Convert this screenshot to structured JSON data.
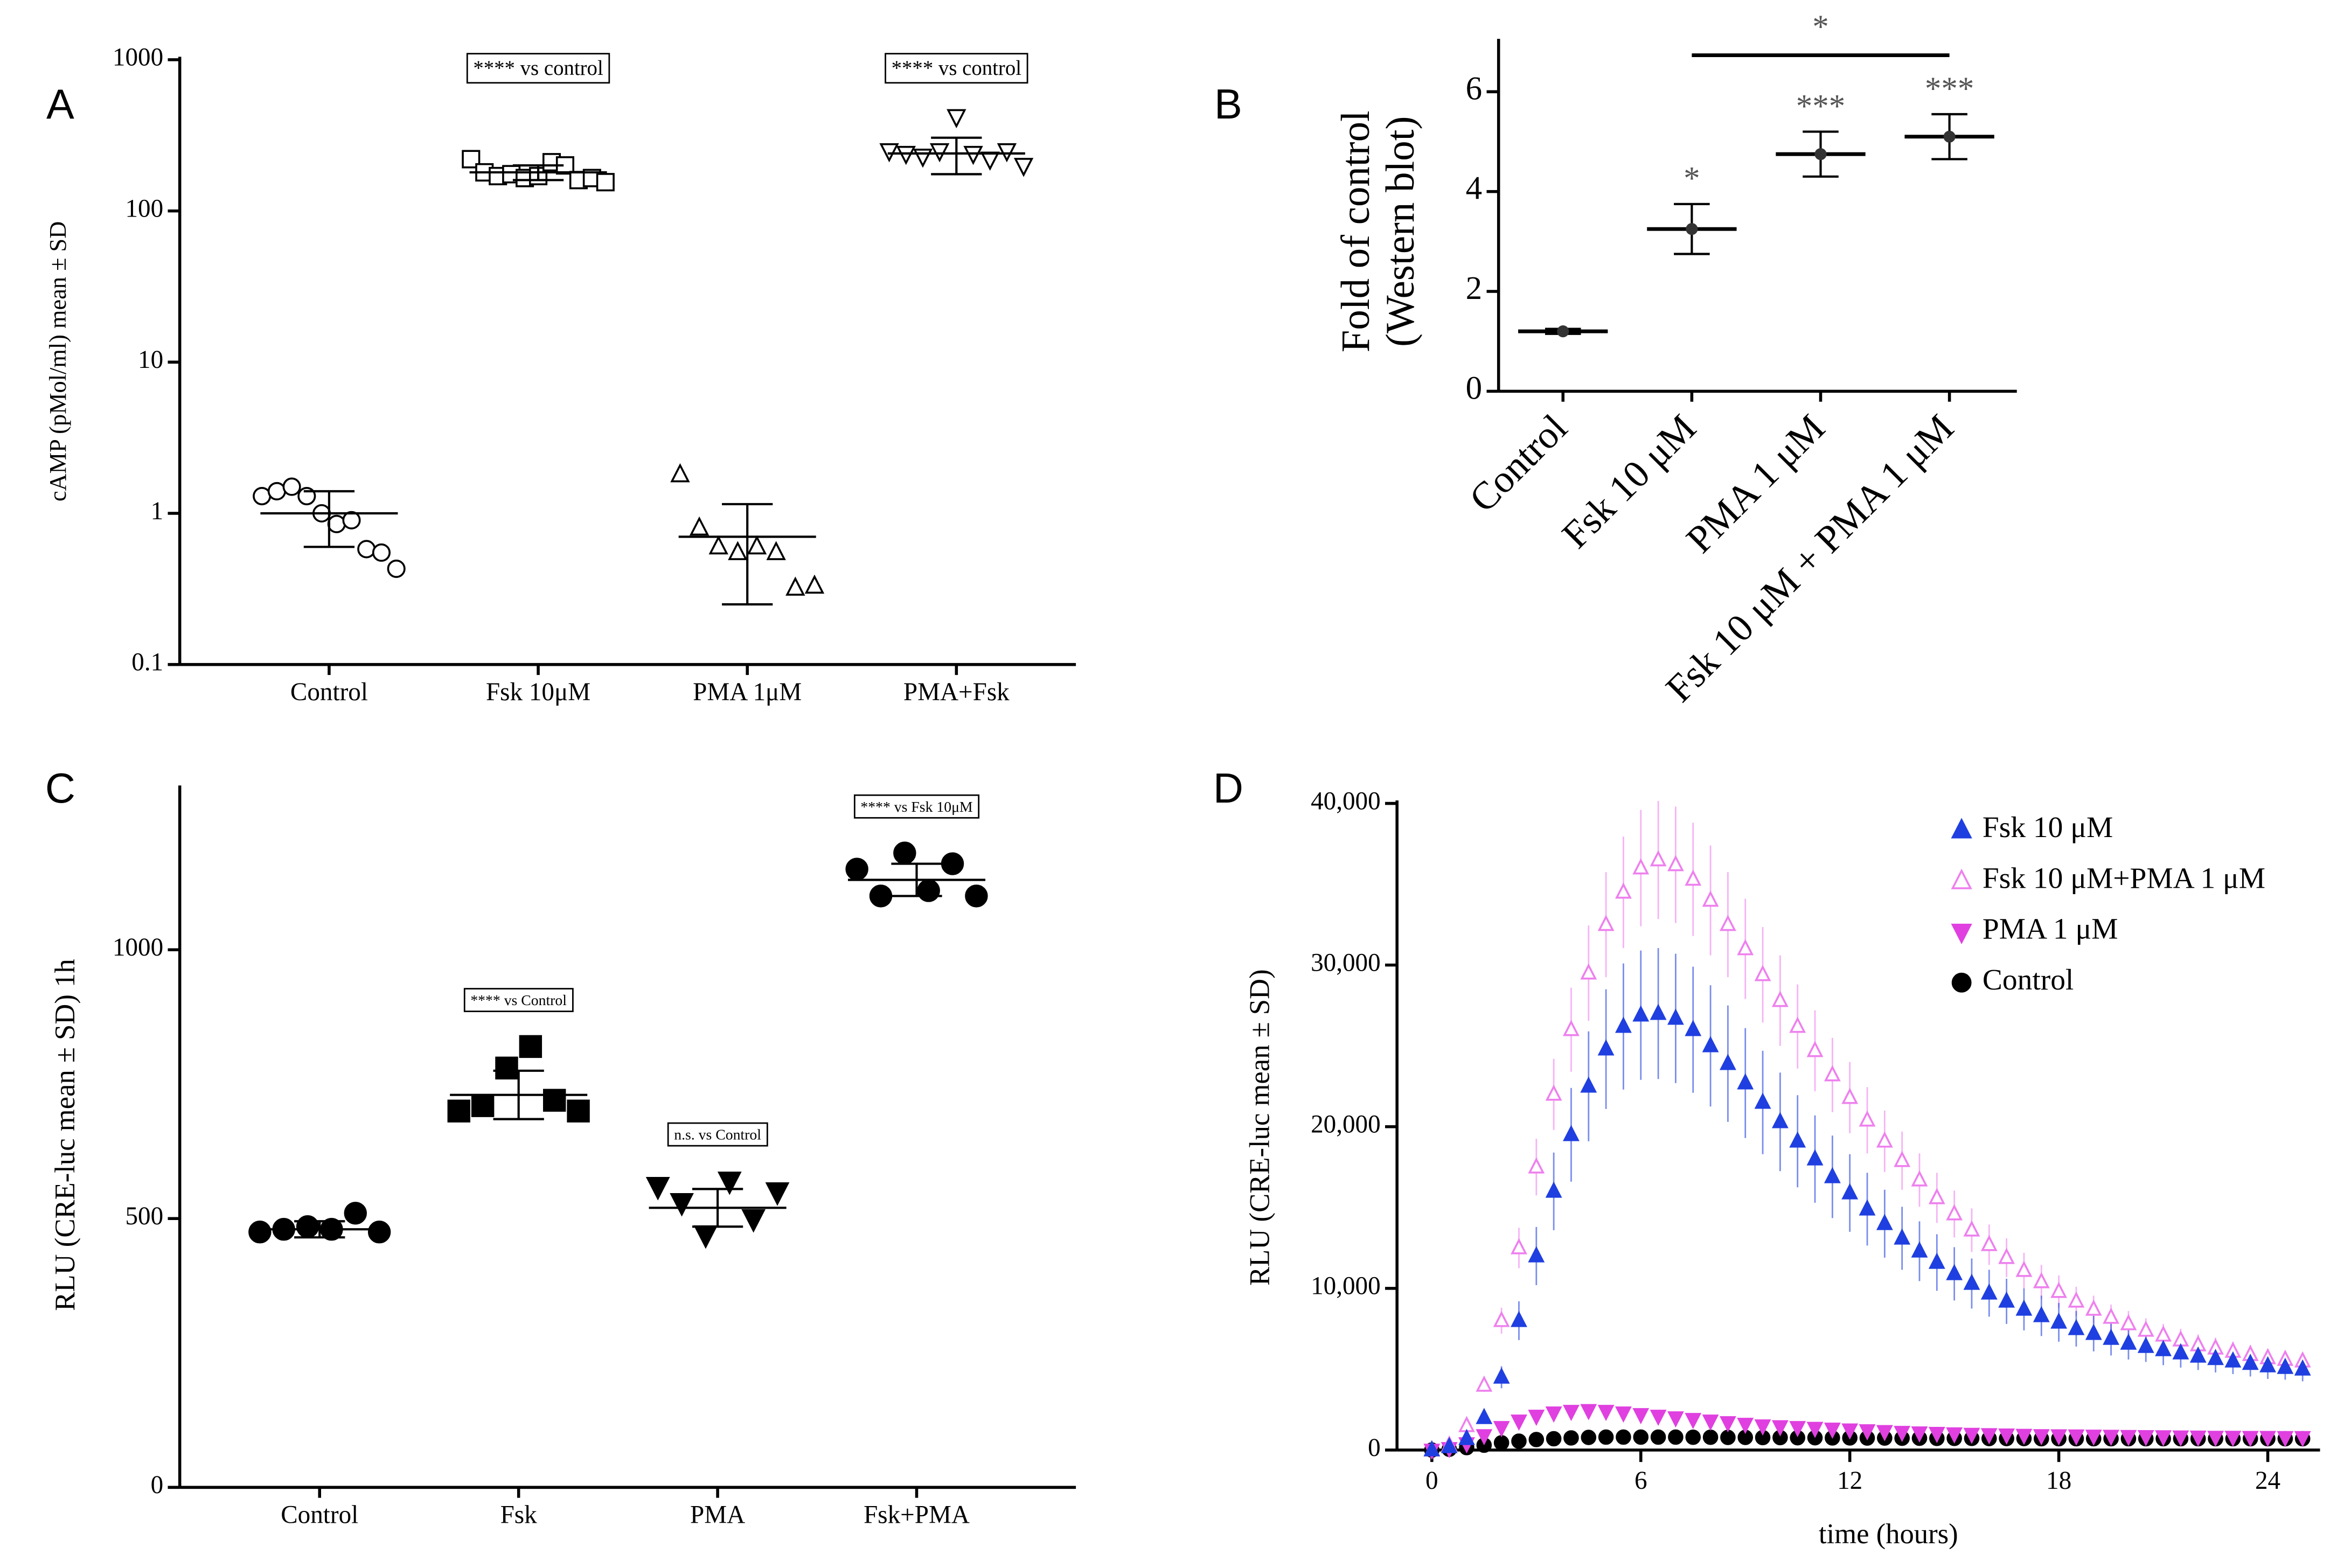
{
  "chart_data": [
    {
      "type": "dot",
      "label": "A",
      "ylabel": [
        "cAMP (pMol/ml) mean ± SD"
      ],
      "log_y": true,
      "ylim": [
        0.1,
        1000
      ],
      "yticks": [
        0.1,
        1,
        10,
        100,
        1000
      ],
      "categories": [
        "Control",
        "Fsk 10μM",
        "PMA 1μM",
        "PMA+Fsk"
      ],
      "color": "#000000",
      "groups": [
        {
          "marker": "circle",
          "filled": false,
          "points": [
            1.3,
            1.4,
            1.5,
            1.3,
            1.0,
            0.85,
            0.9,
            0.58,
            0.55,
            0.43
          ],
          "mean": 1.0,
          "sd": 0.4
        },
        {
          "marker": "square",
          "filled": false,
          "points": [
            220,
            180,
            170,
            175,
            165,
            170,
            210,
            200,
            160,
            165,
            155
          ],
          "mean": 180,
          "sd": 20,
          "annotation": "**** vs control"
        },
        {
          "marker": "triangle",
          "filled": false,
          "points": [
            1.8,
            0.8,
            0.6,
            0.55,
            0.6,
            0.55,
            0.32,
            0.33
          ],
          "mean": 0.7,
          "sd": 0.45
        },
        {
          "marker": "triangle-down",
          "filled": false,
          "points": [
            250,
            240,
            230,
            250,
            420,
            240,
            220,
            250,
            200
          ],
          "mean": 240,
          "sd": 65,
          "annotation": "**** vs control"
        }
      ]
    },
    {
      "type": "errorbar",
      "label": "B",
      "ylabel": [
        "Fold of control",
        "(Western blot)"
      ],
      "ylim": [
        0,
        7
      ],
      "yticks": [
        0,
        2,
        4,
        6
      ],
      "color": "#000000",
      "categories": [
        "Control",
        "Fsk 10 μM",
        "PMA 1 μM",
        "Fsk 10 μM + PMA 1 μM"
      ],
      "values": [
        1.2,
        3.25,
        4.75,
        5.1
      ],
      "errors": [
        0.05,
        0.5,
        0.45,
        0.45
      ],
      "annotations": [
        null,
        "*",
        "***",
        "***"
      ],
      "bracket": {
        "label": "*",
        "between": [
          "Fsk 10 μM",
          "Fsk 10 μM + PMA 1 μM"
        ]
      }
    },
    {
      "type": "dot",
      "label": "C",
      "ylabel": [
        "RLU (CRE-luc mean ± SD) 1h"
      ],
      "ylim": [
        0,
        1300
      ],
      "yticks": [
        0,
        500,
        1000
      ],
      "color": "#000000",
      "categories": [
        "Control",
        "Fsk",
        "PMA",
        "Fsk+PMA"
      ],
      "groups": [
        {
          "marker": "circle",
          "filled": true,
          "points": [
            475,
            480,
            485,
            480,
            510,
            475
          ],
          "mean": 480,
          "sd": 15
        },
        {
          "marker": "square",
          "filled": true,
          "points": [
            700,
            710,
            780,
            820,
            720,
            700
          ],
          "mean": 730,
          "sd": 45,
          "annotation": "**** vs Control"
        },
        {
          "marker": "triangle-down",
          "filled": true,
          "points": [
            560,
            530,
            470,
            570,
            500,
            550
          ],
          "mean": 520,
          "sd": 35,
          "annotation": "n.s. vs Control"
        },
        {
          "marker": "circle",
          "filled": true,
          "points": [
            1150,
            1100,
            1180,
            1110,
            1160,
            1100
          ],
          "mean": 1130,
          "sd": 30,
          "annotation": "**** vs Fsk 10μM"
        }
      ]
    },
    {
      "type": "scatter",
      "label": "D",
      "xlabel": "time (hours)",
      "ylabel": [
        "RLU (CRE-luc mean ± SD)"
      ],
      "xlim": [
        -1,
        25.5
      ],
      "xticks": [
        0,
        6,
        12,
        18,
        24
      ],
      "ylim": [
        0,
        40000
      ],
      "yticks": [
        0,
        {
          "value": 10000,
          "label": "10,000"
        },
        {
          "value": 20000,
          "label": "20,000"
        },
        {
          "value": 30000,
          "label": "30,000"
        },
        {
          "value": 40000,
          "label": "40,000"
        }
      ],
      "legend": "upper right",
      "x": [
        0,
        0.5,
        1,
        1.5,
        2,
        2.5,
        3,
        3.5,
        4,
        4.5,
        5,
        5.5,
        6,
        6.5,
        7,
        7.5,
        8,
        8.5,
        9,
        9.5,
        10,
        10.5,
        11,
        11.5,
        12,
        12.5,
        13,
        13.5,
        14,
        14.5,
        15,
        15.5,
        16,
        16.5,
        17,
        17.5,
        18,
        18.5,
        19,
        19.5,
        20,
        20.5,
        21,
        21.5,
        22,
        22.5,
        23,
        23.5,
        24,
        24.5,
        25
      ],
      "series": [
        {
          "name": "Fsk 10 μM",
          "color": "#1f3fe0",
          "marker": "triangle",
          "filled": true,
          "values": [
            0,
            200,
            700,
            2000,
            4500,
            8000,
            12000,
            16000,
            19500,
            22500,
            24800,
            26200,
            26900,
            27000,
            26700,
            26000,
            25000,
            23900,
            22700,
            21500,
            20300,
            19100,
            18000,
            16900,
            15900,
            14900,
            14000,
            13100,
            12300,
            11600,
            10900,
            10300,
            9700,
            9200,
            8700,
            8300,
            7900,
            7500,
            7200,
            6900,
            6600,
            6400,
            6200,
            6000,
            5800,
            5650,
            5500,
            5350,
            5200,
            5100,
            5000
          ],
          "errors": [
            0,
            30,
            100,
            300,
            680,
            1200,
            1800,
            2400,
            2900,
            3400,
            3700,
            3900,
            4000,
            4050,
            4000,
            3900,
            3750,
            3600,
            3400,
            3200,
            3050,
            2850,
            2700,
            2550,
            2400,
            2250,
            2100,
            1950,
            1850,
            1750,
            1650,
            1550,
            1450,
            1400,
            1300,
            1250,
            1200,
            1100,
            1100,
            1050,
            1000,
            950,
            950,
            900,
            850,
            850,
            800,
            800,
            800,
            750,
            750
          ]
        },
        {
          "name": "Fsk 10 μM+PMA 1 μM",
          "color": "#ee80ee",
          "marker": "triangle",
          "filled": false,
          "values": [
            0,
            300,
            1500,
            4000,
            8000,
            12500,
            17500,
            22000,
            26000,
            29500,
            32500,
            34500,
            36000,
            36500,
            36200,
            35300,
            34000,
            32500,
            31000,
            29400,
            27800,
            26200,
            24700,
            23200,
            21800,
            20400,
            19100,
            17900,
            16700,
            15600,
            14600,
            13600,
            12700,
            11900,
            11100,
            10400,
            9800,
            9200,
            8700,
            8200,
            7800,
            7400,
            7100,
            6800,
            6500,
            6300,
            6100,
            5900,
            5700,
            5600,
            5500
          ],
          "errors": [
            0,
            30,
            150,
            400,
            800,
            1250,
            1750,
            2200,
            2600,
            2950,
            3250,
            3450,
            3600,
            3650,
            3600,
            3500,
            3400,
            3250,
            3100,
            2950,
            2800,
            2600,
            2500,
            2300,
            2200,
            2050,
            1900,
            1800,
            1650,
            1550,
            1450,
            1350,
            1250,
            1200,
            1100,
            1050,
            1000,
            900,
            850,
            800,
            800,
            750,
            700,
            700,
            650,
            650,
            600,
            600,
            550,
            550,
            550
          ]
        },
        {
          "name": "PMA 1 μM",
          "color": "#e040e0",
          "marker": "triangle-down",
          "filled": true,
          "values": [
            0,
            100,
            400,
            900,
            1400,
            1800,
            2100,
            2300,
            2400,
            2450,
            2400,
            2300,
            2200,
            2100,
            2000,
            1900,
            1800,
            1700,
            1600,
            1500,
            1450,
            1400,
            1350,
            1300,
            1250,
            1200,
            1150,
            1100,
            1070,
            1040,
            1010,
            980,
            960,
            940,
            920,
            900,
            890,
            880,
            870,
            860,
            850,
            840,
            830,
            820,
            810,
            800,
            800,
            790,
            790,
            780,
            780
          ]
        },
        {
          "name": "Control",
          "color": "#000000",
          "marker": "circle",
          "filled": true,
          "values": [
            0,
            50,
            150,
            300,
            450,
            550,
            650,
            700,
            750,
            780,
            800,
            800,
            800,
            800,
            800,
            790,
            790,
            780,
            780,
            770,
            770,
            760,
            760,
            750,
            750,
            740,
            740,
            730,
            730,
            720,
            720,
            720,
            710,
            710,
            710,
            700,
            700,
            700,
            700,
            700,
            700,
            700,
            700,
            700,
            700,
            700,
            700,
            700,
            700,
            700,
            700
          ]
        }
      ]
    }
  ]
}
